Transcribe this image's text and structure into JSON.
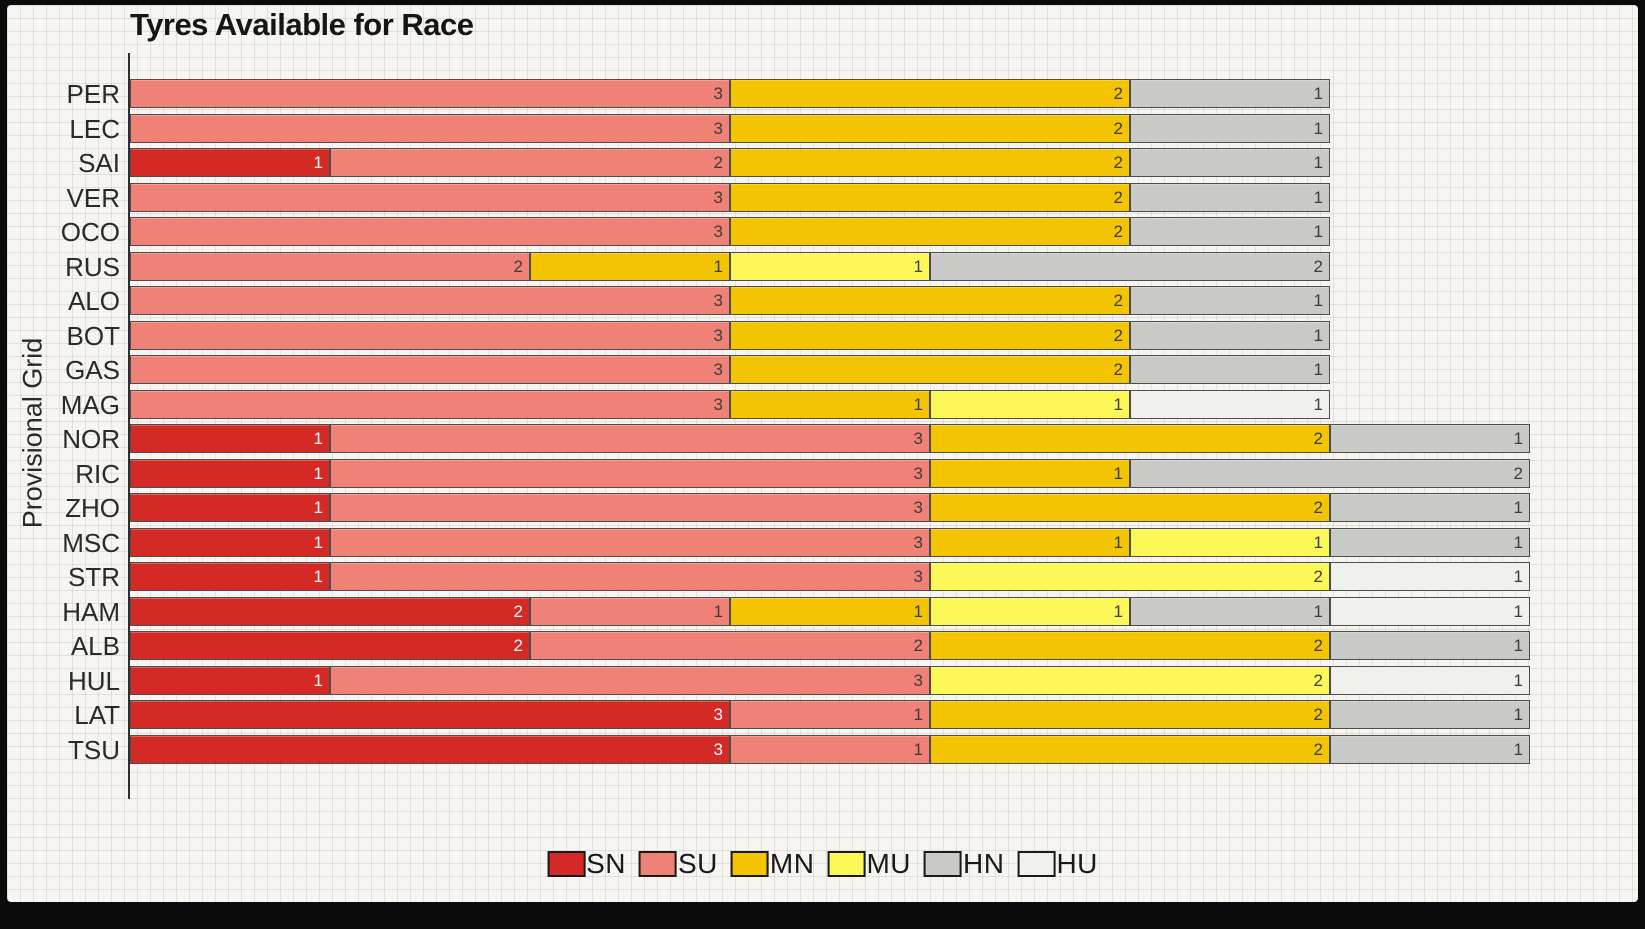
{
  "title": "Tyres Available for Race",
  "axes": {
    "y_label": "Provisional Grid"
  },
  "legend": {
    "items": [
      "SN",
      "SU",
      "MN",
      "MU",
      "HN",
      "HU"
    ]
  },
  "colors": {
    "SN": "#D42A26",
    "SU": "#F08176",
    "MN": "#F3C402",
    "MU": "#FBF858",
    "HN": "#C9C9C7",
    "HU": "#F0F0ED",
    "background": "#F6F5F1",
    "frame": "#0B0B0B",
    "grid": "#DDDBD4",
    "segment_label_dark": "#3D3D3D",
    "segment_label_light": "#F8F8F8"
  },
  "chart_data": {
    "type": "bar",
    "orientation": "horizontal",
    "stacked": true,
    "title": "Tyres Available for Race",
    "ylabel": "Provisional Grid",
    "xlabel": "",
    "xlim": [
      0,
      7.5
    ],
    "grid": true,
    "legend_position": "bottom-center",
    "categories": [
      "PER",
      "LEC",
      "SAI",
      "VER",
      "OCO",
      "RUS",
      "ALO",
      "BOT",
      "GAS",
      "MAG",
      "NOR",
      "RIC",
      "ZHO",
      "MSC",
      "STR",
      "HAM",
      "ALB",
      "HUL",
      "LAT",
      "TSU"
    ],
    "series": [
      {
        "name": "SN",
        "color": "#D42A26",
        "values": [
          0,
          0,
          1,
          0,
          0,
          0,
          0,
          0,
          0,
          0,
          1,
          1,
          1,
          1,
          1,
          2,
          2,
          1,
          3,
          3
        ]
      },
      {
        "name": "SU",
        "color": "#F08176",
        "values": [
          3,
          3,
          2,
          3,
          3,
          2,
          3,
          3,
          3,
          3,
          3,
          3,
          3,
          3,
          3,
          1,
          2,
          3,
          1,
          1
        ]
      },
      {
        "name": "MN",
        "color": "#F3C402",
        "values": [
          2,
          2,
          2,
          2,
          2,
          1,
          2,
          2,
          2,
          1,
          2,
          1,
          2,
          1,
          0,
          1,
          2,
          0,
          2,
          2
        ]
      },
      {
        "name": "MU",
        "color": "#FBF858",
        "values": [
          0,
          0,
          0,
          0,
          0,
          1,
          0,
          0,
          0,
          1,
          0,
          0,
          0,
          1,
          2,
          1,
          0,
          2,
          0,
          0
        ]
      },
      {
        "name": "HN",
        "color": "#C9C9C7",
        "values": [
          1,
          1,
          1,
          1,
          1,
          2,
          1,
          1,
          1,
          0,
          1,
          2,
          1,
          1,
          0,
          1,
          1,
          0,
          1,
          1
        ]
      },
      {
        "name": "HU",
        "color": "#F0F0ED",
        "values": [
          0,
          0,
          0,
          0,
          0,
          0,
          0,
          0,
          0,
          1,
          0,
          0,
          0,
          0,
          1,
          1,
          0,
          1,
          0,
          0
        ]
      }
    ]
  }
}
